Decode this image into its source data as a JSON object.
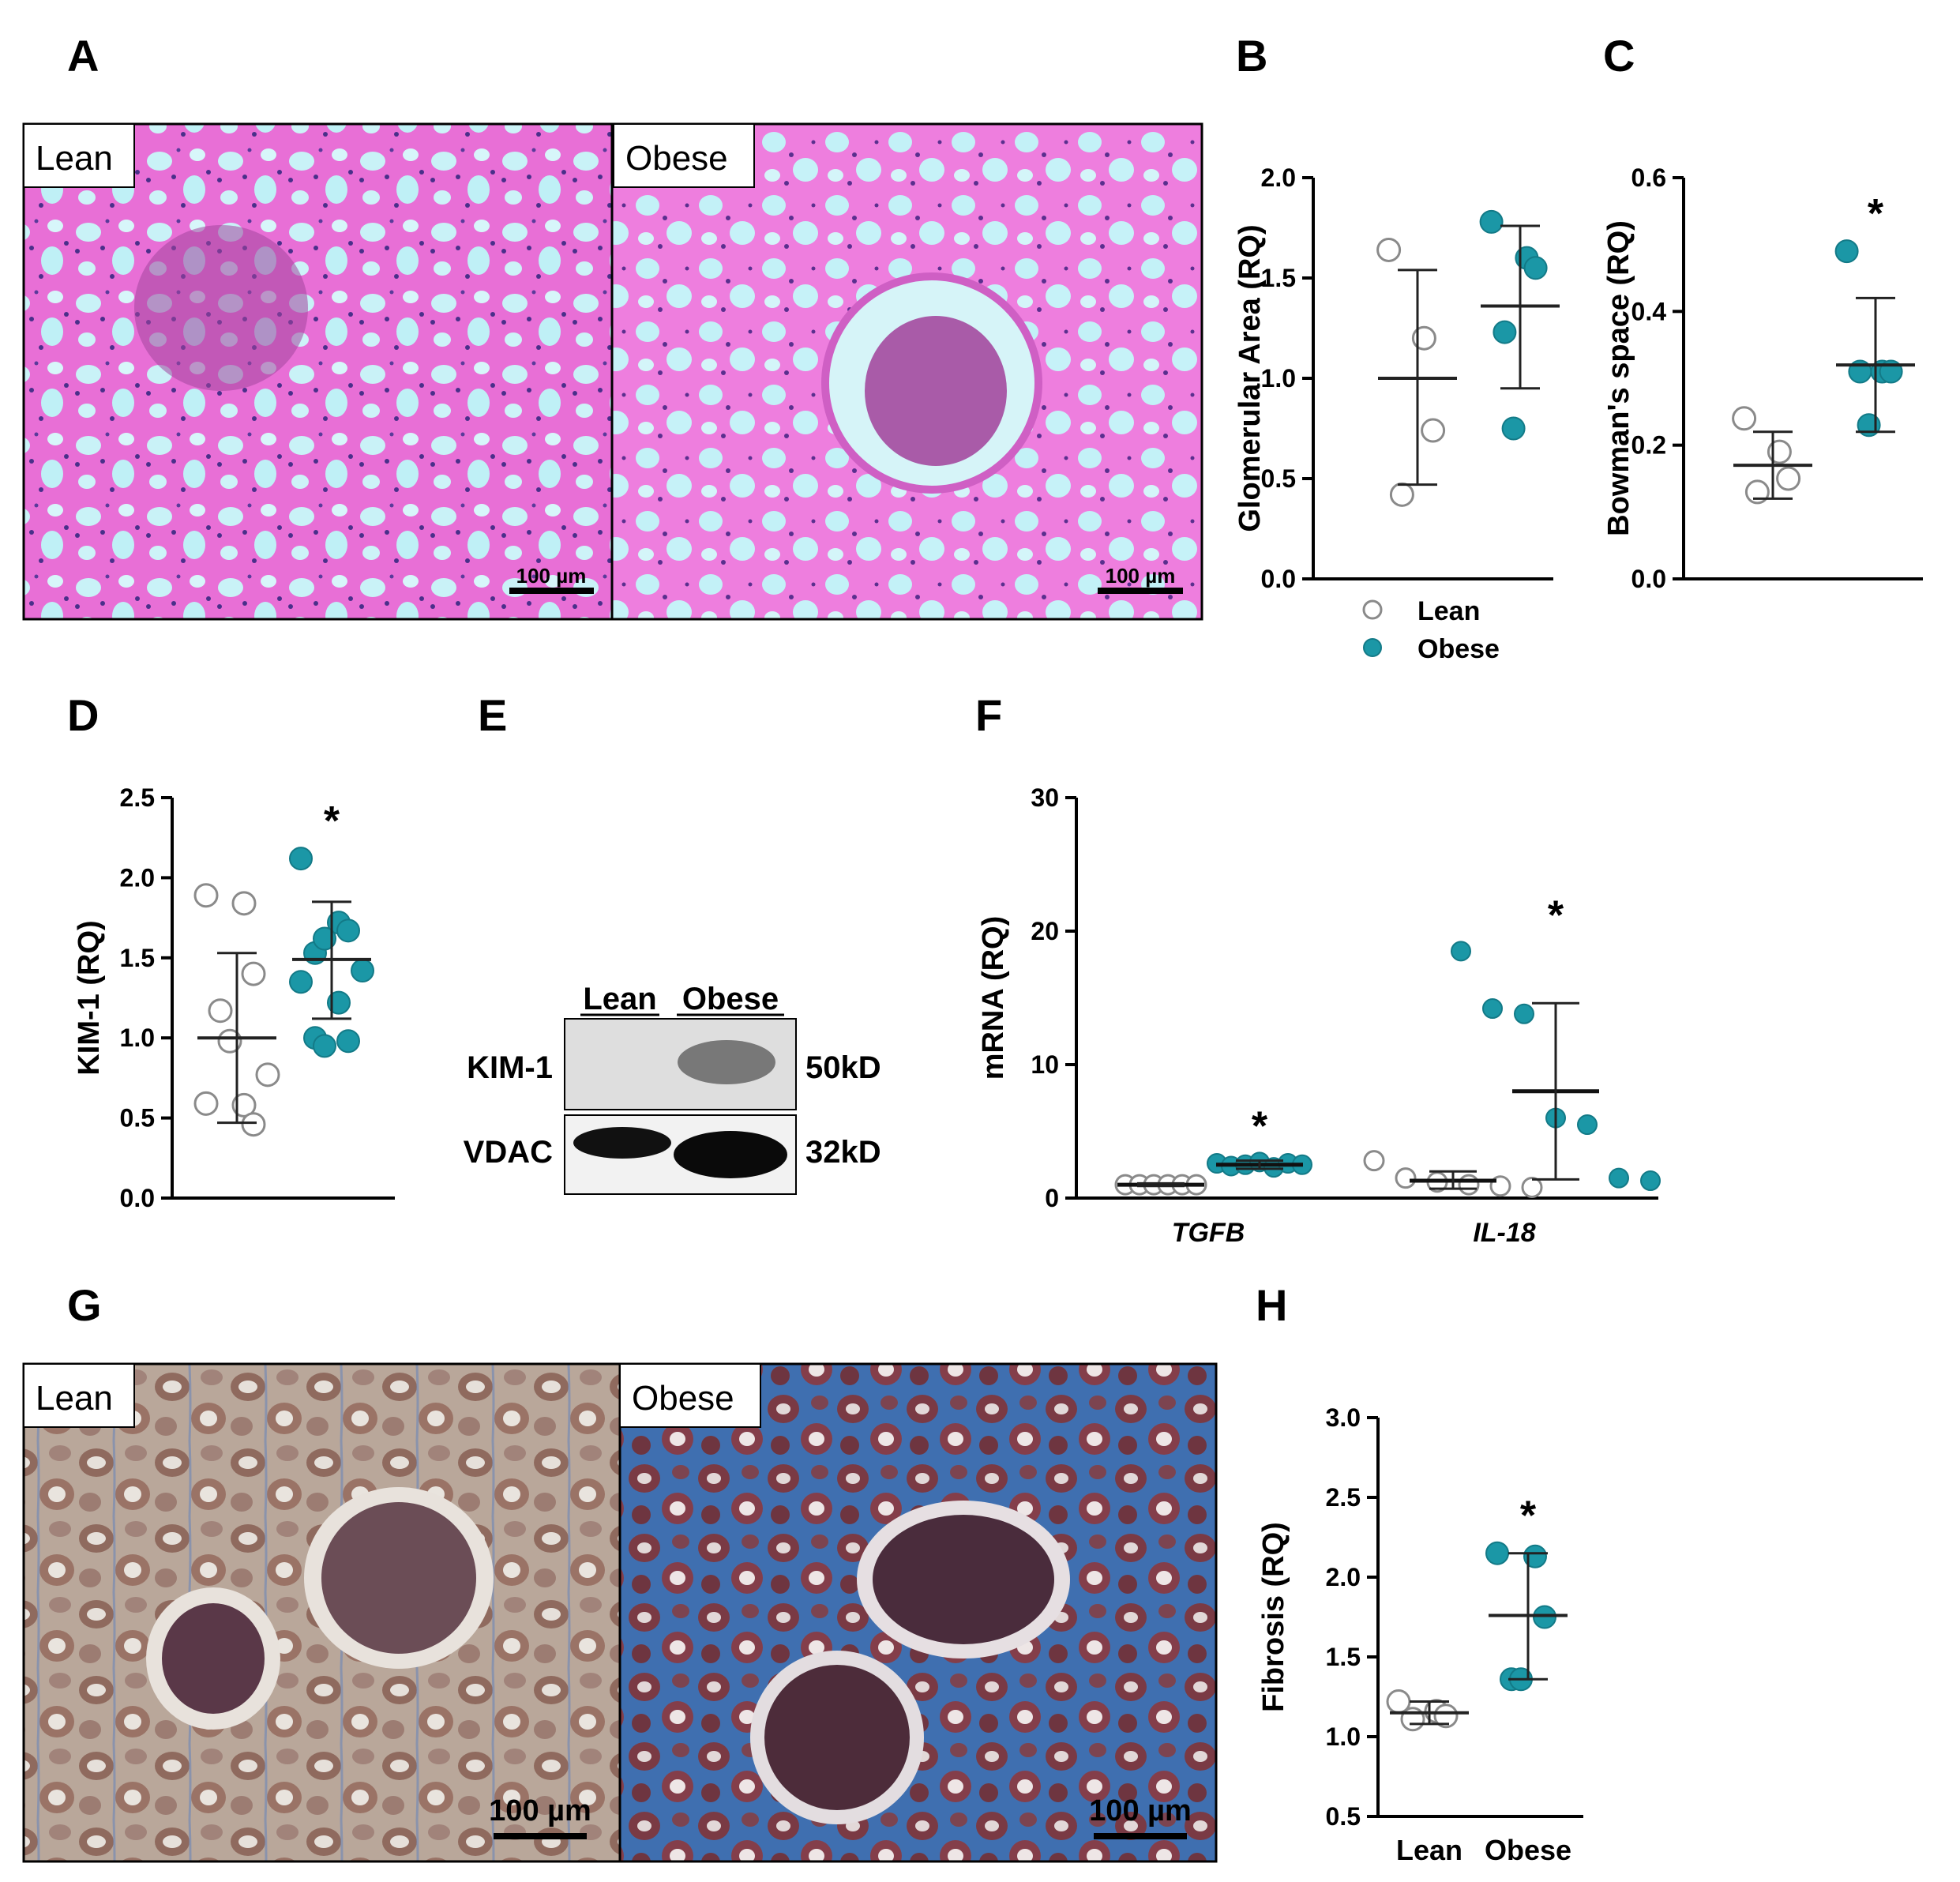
{
  "panel_letters": {
    "A": "A",
    "B": "B",
    "C": "C",
    "D": "D",
    "E": "E",
    "F": "F",
    "G": "G",
    "H": "H"
  },
  "colors": {
    "lean": "#ffffff",
    "lean_stroke": "#8a8a8a",
    "obese": "#1b97a6",
    "obese_stroke": "#137a87",
    "axis": "#000000"
  },
  "legend": {
    "items": [
      {
        "label": "Lean",
        "marker": "open-circle"
      },
      {
        "label": "Obese",
        "marker": "filled-circle"
      }
    ]
  },
  "histology": {
    "pas": {
      "lean_label": "Lean",
      "obese_label": "Obese",
      "scale_lean": "100 µm",
      "scale_obese": "100 µm"
    },
    "trichrome": {
      "lean_label": "Lean",
      "obese_label": "Obese",
      "scale_lean": "100 µm",
      "scale_obese": "100 µm"
    }
  },
  "western_blot": {
    "lanes": [
      "Lean",
      "Obese"
    ],
    "rows": [
      {
        "protein": "KIM-1",
        "mw": "50kD",
        "band_intensity": [
          0.0,
          0.6
        ]
      },
      {
        "protein": "VDAC",
        "mw": "32kD",
        "band_intensity": [
          1.0,
          1.0
        ]
      }
    ]
  },
  "chart_data": [
    {
      "panel": "B",
      "type": "scatter",
      "ylabel": "Glomerular Area (RQ)",
      "ylim": [
        0,
        2
      ],
      "yticks": [
        "0.0",
        "0.5",
        "1.0",
        "1.5",
        "2.0"
      ],
      "series": [
        {
          "name": "Lean",
          "points": [
            1.64,
            1.2,
            0.74,
            0.42
          ],
          "mean": 1.0,
          "sd_upper": 1.54,
          "sd_lower": 0.47
        },
        {
          "name": "Obese",
          "points": [
            1.78,
            1.6,
            1.55,
            1.23,
            0.75
          ],
          "mean": 1.36,
          "sd_upper": 1.76,
          "sd_lower": 0.95
        }
      ],
      "annotations": []
    },
    {
      "panel": "C",
      "type": "scatter",
      "ylabel": "Bowman's space (RQ)",
      "ylim": [
        0,
        0.6
      ],
      "yticks": [
        "0.0",
        "0.2",
        "0.4",
        "0.6"
      ],
      "series": [
        {
          "name": "Lean",
          "points": [
            0.24,
            0.19,
            0.15,
            0.13
          ],
          "mean": 0.17,
          "sd_upper": 0.22,
          "sd_lower": 0.12
        },
        {
          "name": "Obese",
          "points": [
            0.49,
            0.31,
            0.31,
            0.31,
            0.23
          ],
          "mean": 0.32,
          "sd_upper": 0.42,
          "sd_lower": 0.22
        }
      ],
      "annotations": [
        {
          "text": "*",
          "series": "Obese"
        }
      ]
    },
    {
      "panel": "D",
      "type": "scatter",
      "ylabel": "KIM-1 (RQ)",
      "ylim": [
        0,
        2.5
      ],
      "yticks": [
        "0.0",
        "0.5",
        "1.0",
        "1.5",
        "2.0",
        "2.5"
      ],
      "series": [
        {
          "name": "Lean",
          "points": [
            1.89,
            1.84,
            1.4,
            1.17,
            0.98,
            0.77,
            0.59,
            0.58,
            0.46
          ],
          "mean": 1.0,
          "sd_upper": 1.53,
          "sd_lower": 0.47
        },
        {
          "name": "Obese",
          "points": [
            2.12,
            1.72,
            1.67,
            1.53,
            1.62,
            1.42,
            1.35,
            1.22,
            0.98,
            1.0,
            0.95
          ],
          "mean": 1.49,
          "sd_upper": 1.85,
          "sd_lower": 1.12
        }
      ],
      "annotations": [
        {
          "text": "*",
          "series": "Obese"
        }
      ]
    },
    {
      "panel": "F",
      "type": "scatter",
      "ylabel": "mRNA (RQ)",
      "ylim": [
        0,
        30
      ],
      "yticks": [
        "0",
        "10",
        "20",
        "30"
      ],
      "categories": [
        "TGFB",
        "IL-18"
      ],
      "groups": [
        {
          "category": "TGFB",
          "series": [
            {
              "name": "Lean",
              "points": [
                1.0,
                1.0,
                1.0,
                1.0,
                1.0,
                1.0
              ],
              "mean": 1.0,
              "sd_upper": 1.1,
              "sd_lower": 0.9
            },
            {
              "name": "Obese",
              "points": [
                2.6,
                2.4,
                2.5,
                2.7,
                2.3,
                2.6,
                2.5
              ],
              "mean": 2.5,
              "sd_upper": 2.8,
              "sd_lower": 2.2
            }
          ],
          "annotation": "*"
        },
        {
          "category": "IL-18",
          "series": [
            {
              "name": "Lean",
              "points": [
                2.8,
                1.5,
                1.2,
                1.0,
                0.9,
                0.8
              ],
              "mean": 1.3,
              "sd_upper": 2.0,
              "sd_lower": 0.7
            },
            {
              "name": "Obese",
              "points": [
                18.5,
                14.2,
                13.8,
                6.0,
                5.5,
                1.5,
                1.3
              ],
              "mean": 8.0,
              "sd_upper": 14.6,
              "sd_lower": 1.4
            }
          ],
          "annotation": "*"
        }
      ]
    },
    {
      "panel": "H",
      "type": "scatter",
      "ylabel": "Fibrosis (RQ)",
      "ylim": [
        0.5,
        3.0
      ],
      "yticks": [
        "0.5",
        "1.0",
        "1.5",
        "2.0",
        "2.5",
        "3.0"
      ],
      "categories": [
        "Lean",
        "Obese"
      ],
      "series": [
        {
          "name": "Lean",
          "points": [
            1.22,
            1.16,
            1.13,
            1.11
          ],
          "mean": 1.15,
          "sd_upper": 1.22,
          "sd_lower": 1.08
        },
        {
          "name": "Obese",
          "points": [
            2.15,
            2.13,
            1.75,
            1.36,
            1.36
          ],
          "mean": 1.76,
          "sd_upper": 2.15,
          "sd_lower": 1.36
        }
      ],
      "annotations": [
        {
          "text": "*",
          "series": "Obese"
        }
      ]
    }
  ]
}
